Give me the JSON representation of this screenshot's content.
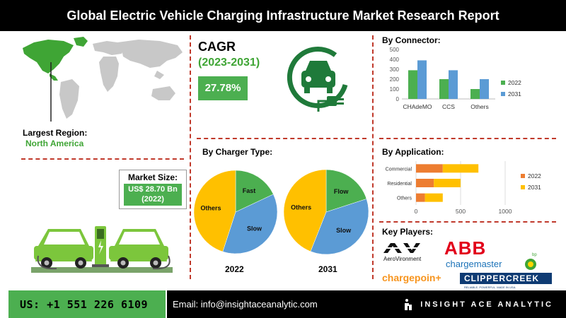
{
  "header": {
    "title": "Global Electric Vehicle Charging Infrastructure Market Research Report"
  },
  "region": {
    "label": "Largest Region:",
    "value": "North America"
  },
  "market_size": {
    "label": "Market Size:",
    "value": "US$ 28.70 Bn",
    "year": "(2022)"
  },
  "cagr": {
    "label": "CAGR",
    "period": "(2023-2031)",
    "value": "27.78%"
  },
  "key_players": {
    "label": "Key Players:",
    "aerovironment": "AeroVironment",
    "abb": "ABB",
    "chargemaster": "chargemaster",
    "bp": "bp",
    "chargepoint": "chargepoin+",
    "clippercreek": "CLIPPERCREEK",
    "clippercreek_tag": "RELIABLE. POWERFUL. MADE IN USA."
  },
  "footer": {
    "phone": "US: +1 551 226 6109",
    "email": "Email: info@insightaceanalytic.com",
    "brand": "INSIGHT ACE ANALYTIC"
  },
  "colors": {
    "green": "#4caf50",
    "blue": "#5b9bd5",
    "orange": "#ed7d31",
    "yellow": "#ffc000"
  },
  "chart_data": [
    {
      "type": "bar",
      "title": "By Connector:",
      "categories": [
        "CHAdeMO",
        "CCS",
        "Others"
      ],
      "series": [
        {
          "name": "2022",
          "values": [
            290,
            200,
            100
          ],
          "color": "#4caf50"
        },
        {
          "name": "2031",
          "values": [
            390,
            290,
            200
          ],
          "color": "#5b9bd5"
        }
      ],
      "ylim": [
        0,
        500
      ],
      "yticks": [
        0,
        100,
        200,
        300,
        400,
        500
      ],
      "grid": false,
      "legend": "right"
    },
    {
      "type": "pie",
      "title": "By Charger Type:",
      "caption": "2022",
      "slices": [
        {
          "label": "Fast",
          "value": 18,
          "color": "#4caf50"
        },
        {
          "label": "Slow",
          "value": 37,
          "color": "#5b9bd5"
        },
        {
          "label": "Others",
          "value": 45,
          "color": "#ffc000"
        }
      ]
    },
    {
      "type": "pie",
      "caption": "2031",
      "slices": [
        {
          "label": "Flow",
          "value": 20,
          "color": "#4caf50"
        },
        {
          "label": "Slow",
          "value": 36,
          "color": "#5b9bd5"
        },
        {
          "label": "Others",
          "value": 44,
          "color": "#ffc000"
        }
      ]
    },
    {
      "type": "bar",
      "orientation": "horizontal",
      "stacked": true,
      "title": "By Application:",
      "categories": [
        "Commercial",
        "Residential",
        "Others"
      ],
      "series": [
        {
          "name": "2022",
          "values": [
            300,
            200,
            100
          ],
          "color": "#ed7d31"
        },
        {
          "name": "2031",
          "values": [
            400,
            300,
            200
          ],
          "color": "#ffc000"
        }
      ],
      "xlim": [
        0,
        1000
      ],
      "xticks": [
        0,
        500,
        1000
      ],
      "grid": true,
      "legend": "right"
    }
  ]
}
